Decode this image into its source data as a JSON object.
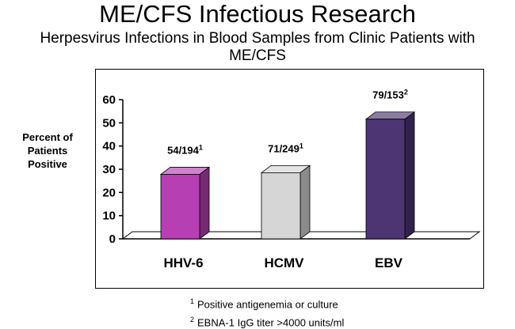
{
  "header": {
    "title": "ME/CFS Infectious Research",
    "subtitle": "Herpesvirus Infections in Blood Samples from Clinic Patients with ME/CFS"
  },
  "chart_data": {
    "type": "bar",
    "categories": [
      "HHV-6",
      "HCMV",
      "EBV"
    ],
    "values": [
      27.8,
      28.5,
      51.6
    ],
    "data_labels": [
      {
        "text": "54/194",
        "sup": "1"
      },
      {
        "text": "71/249",
        "sup": "1"
      },
      {
        "text": "79/153",
        "sup": "2"
      }
    ],
    "colors": [
      "#b63fb3",
      "#d6d6d6",
      "#4d3573"
    ],
    "ylabel": "Percent of Patients Positive",
    "ylim": [
      0,
      60
    ],
    "yticks": [
      0,
      10,
      20,
      30,
      40,
      50,
      60
    ],
    "grid": false,
    "style": "3d-bars"
  },
  "footnotes": [
    {
      "marker": "1",
      "text": "Positive antigenemia or culture"
    },
    {
      "marker": "2",
      "text": "EBNA-1  IgG titer >4000 units/ml"
    }
  ]
}
